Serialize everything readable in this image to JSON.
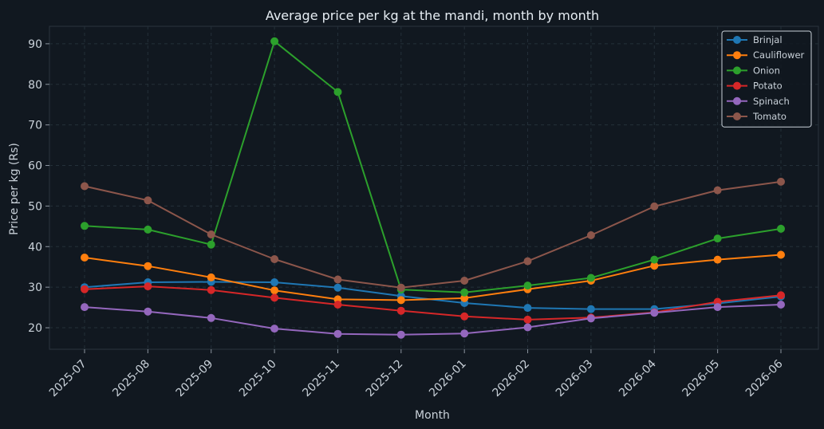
{
  "chart_data": {
    "type": "line",
    "title": "Average price per kg at the mandi, month by month",
    "xlabel": "Month",
    "ylabel": "Price per kg (Rs)",
    "categories": [
      "2025-07",
      "2025-08",
      "2025-09",
      "2025-10",
      "2025-11",
      "2025-12",
      "2026-01",
      "2026-02",
      "2026-03",
      "2026-04",
      "2026-05",
      "2026-06"
    ],
    "ylim": [
      14.7,
      94.3
    ],
    "yticks": [
      20,
      30,
      40,
      50,
      60,
      70,
      80,
      90
    ],
    "grid": true,
    "legend_position": "top-right",
    "series": [
      {
        "name": "Brinjal",
        "color": "#1f77b4",
        "values": [
          30.0,
          31.2,
          31.3,
          31.2,
          29.9,
          27.8,
          26.1,
          24.9,
          24.6,
          24.6,
          26.0,
          27.7
        ]
      },
      {
        "name": "Cauliflower",
        "color": "#ff7f0e",
        "values": [
          37.3,
          35.2,
          32.4,
          29.2,
          27.0,
          26.8,
          27.3,
          29.5,
          31.6,
          35.3,
          36.8,
          38.0
        ]
      },
      {
        "name": "Onion",
        "color": "#2ca02c",
        "values": [
          45.1,
          44.2,
          40.5,
          90.6,
          78.1,
          29.4,
          28.7,
          30.4,
          32.3,
          36.8,
          42.0,
          44.4
        ]
      },
      {
        "name": "Potato",
        "color": "#d62728",
        "values": [
          29.5,
          30.2,
          29.3,
          27.4,
          25.7,
          24.2,
          22.8,
          22.0,
          22.5,
          23.8,
          26.4,
          28.0
        ]
      },
      {
        "name": "Spinach",
        "color": "#9467bd",
        "values": [
          25.1,
          24.0,
          22.4,
          19.8,
          18.5,
          18.3,
          18.6,
          20.1,
          22.3,
          23.7,
          25.1,
          25.7
        ]
      },
      {
        "name": "Tomato",
        "color": "#8c564b",
        "values": [
          54.9,
          51.4,
          43.0,
          36.9,
          31.9,
          29.9,
          31.6,
          36.4,
          42.8,
          49.9,
          53.9,
          56.0
        ]
      }
    ]
  }
}
